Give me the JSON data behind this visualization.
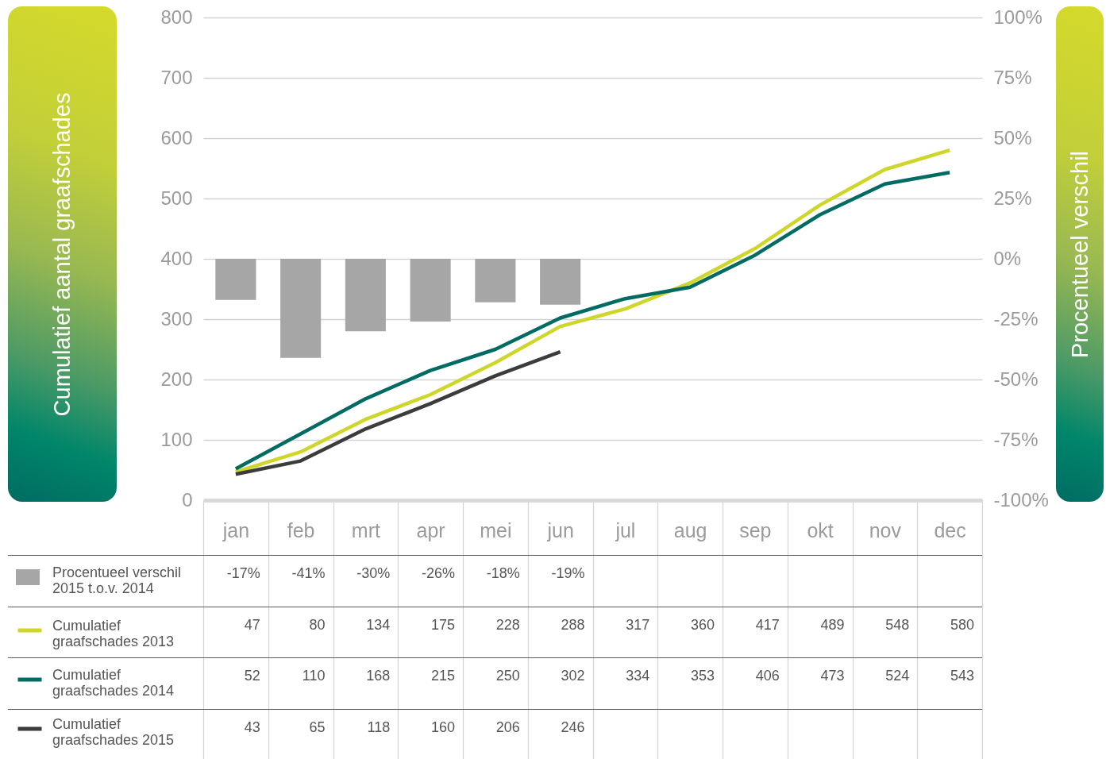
{
  "chart_data": {
    "type": "bar",
    "ylabel": "Cumulatief aantal graafschades",
    "y2label": "Procentueel verschil",
    "categories": [
      "jan",
      "feb",
      "mrt",
      "apr",
      "mei",
      "jun",
      "jul",
      "aug",
      "sep",
      "okt",
      "nov",
      "dec"
    ],
    "series": [
      {
        "name": "Procentueel verschil 2015 t.o.v. 2014",
        "axis": "y2",
        "color": "#a6a6a6",
        "values": [
          -17,
          -41,
          -30,
          -26,
          -18,
          -19,
          null,
          null,
          null,
          null,
          null,
          null
        ],
        "value_labels": [
          "-17%",
          "-41%",
          "-30%",
          "-26%",
          "-18%",
          "-19%",
          null,
          null,
          null,
          null,
          null,
          null
        ]
      },
      {
        "name": "Cumulatief graafschades 2013",
        "type": "line",
        "color": "#cfd62a",
        "values": [
          47,
          80,
          134,
          175,
          228,
          288,
          317,
          360,
          417,
          489,
          548,
          580
        ]
      },
      {
        "name": "Cumulatief graafschades 2014",
        "type": "line",
        "color": "#006b63",
        "values": [
          52,
          110,
          168,
          215,
          250,
          302,
          334,
          353,
          406,
          473,
          524,
          543
        ]
      },
      {
        "name": "Cumulatief graafschades 2015",
        "type": "line",
        "color": "#3c3c3c",
        "values": [
          43,
          65,
          118,
          160,
          206,
          246,
          null,
          null,
          null,
          null,
          null,
          null
        ]
      }
    ],
    "ylim": [
      0,
      800
    ],
    "yticks": [
      0,
      100,
      200,
      300,
      400,
      500,
      600,
      700,
      800
    ],
    "y2lim": [
      -100,
      100
    ],
    "y2ticks": [
      {
        "value": -100,
        "label": "-100%"
      },
      {
        "value": -75,
        "label": "-75%"
      },
      {
        "value": -50,
        "label": "-50%"
      },
      {
        "value": -25,
        "label": "-25%"
      },
      {
        "value": 0,
        "label": "0%"
      },
      {
        "value": 25,
        "label": "25%"
      },
      {
        "value": 50,
        "label": "50%"
      },
      {
        "value": 75,
        "label": "75%"
      },
      {
        "value": 100,
        "label": "100%"
      }
    ],
    "grid": "y",
    "legend": "bottom left",
    "data_labels": true
  }
}
